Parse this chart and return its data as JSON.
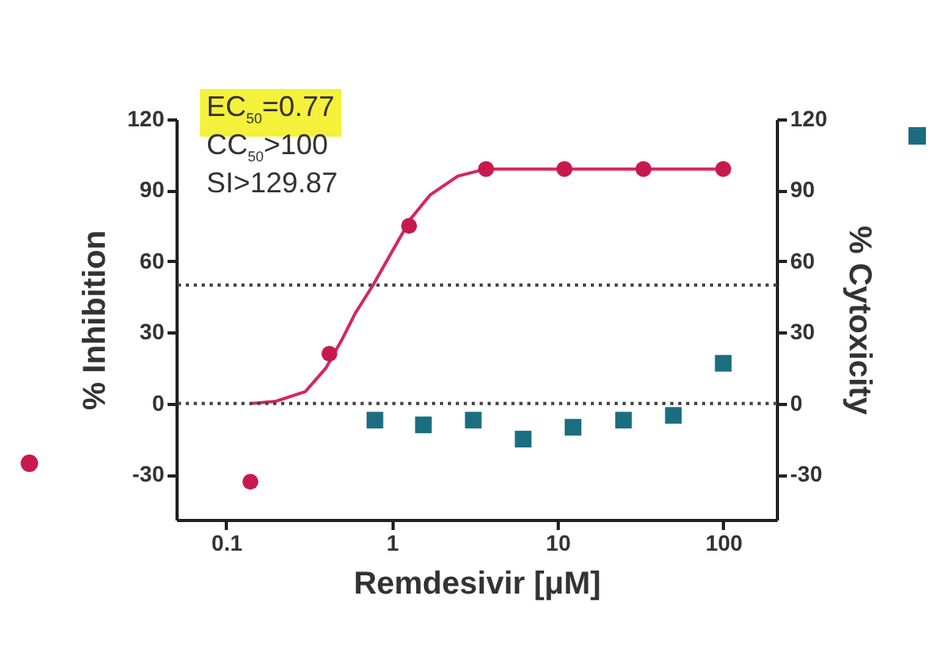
{
  "chart_data": {
    "type": "scatter",
    "xlabel": "Remdesivir [μM]",
    "ylabel": "% Inhibition",
    "y2label": "% Cytoxicity",
    "annotations": [
      "EC$_{50}$=0.77",
      "CC$_{50}$>100",
      "SI>129.87"
    ],
    "log": "x",
    "xlim": [
      0.05,
      210
    ],
    "xticks": [
      0.1,
      1,
      10,
      100
    ],
    "ylim": [
      -49,
      120
    ],
    "yticks": [
      -30,
      0,
      30,
      60,
      90,
      120
    ],
    "y2lim": [
      -49,
      120
    ],
    "y2ticks": [
      -30,
      0,
      30,
      60,
      90,
      120
    ],
    "grid": false,
    "ref_lines": [
      {
        "axis": "y",
        "value": 50,
        "line_style": "dotted",
        "color": "#444444"
      },
      {
        "axis": "y",
        "value": 0,
        "line_style": "dotted",
        "color": "#444444"
      }
    ],
    "series": [
      {
        "type": "line",
        "color": "#d6265e",
        "marker": "none",
        "line_style": "solid",
        "x": [
          0.14,
          0.2,
          0.3,
          0.4,
          0.5,
          0.6,
          0.77,
          1,
          1.3,
          1.7,
          2.5,
          3.7,
          11,
          33,
          100
        ],
        "values": [
          0,
          1,
          5,
          15,
          27,
          38,
          50,
          64,
          78,
          88,
          96,
          99,
          99,
          99,
          99
        ]
      },
      {
        "type": "scatter",
        "color": "#c8194f",
        "marker": "circle",
        "x": [
          0.14,
          0.42,
          1.27,
          3.7,
          11,
          33,
          100
        ],
        "values": [
          -33,
          21,
          75,
          99,
          99,
          99,
          99
        ]
      },
      {
        "type": "scatter",
        "axis": "y2",
        "color": "#1a6e80",
        "marker": "square",
        "x": [
          0.79,
          1.55,
          3.1,
          6.2,
          12.4,
          25,
          50,
          100
        ],
        "values": [
          -7,
          -9,
          -7,
          -15,
          -10,
          -7,
          -5,
          17
        ]
      }
    ]
  }
}
